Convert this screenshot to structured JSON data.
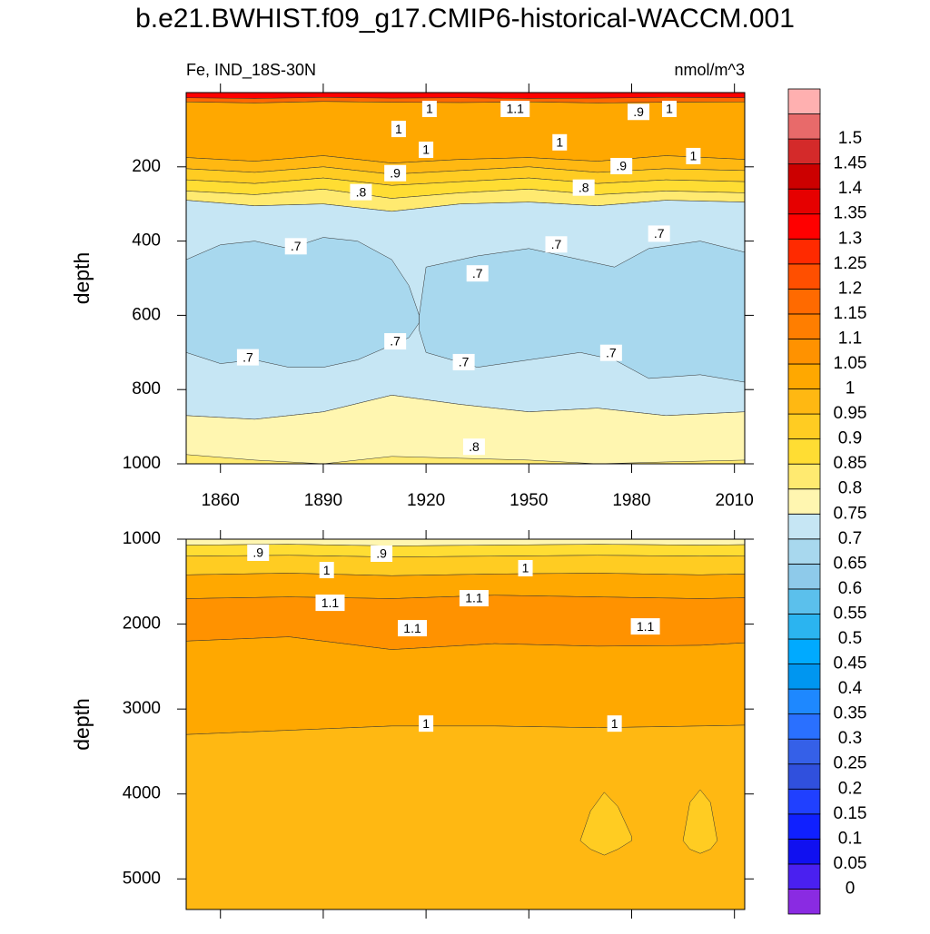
{
  "chart_data": [
    {
      "type": "contour",
      "title": "b.e21.BWHIST.f09_g17.CMIP6-historical-WACCM.001",
      "left_title": "Fe, IND_18S-30N",
      "right_title": "nmol/m^3",
      "ylabel": "depth",
      "xlim": [
        1850,
        2013
      ],
      "ylim": [
        0,
        1000
      ],
      "y_reversed": true,
      "xticks": [
        1860,
        1890,
        1920,
        1950,
        1980,
        2010
      ],
      "yticks": [
        200,
        400,
        600,
        800,
        1000
      ],
      "bands": [
        {
          "level": 1.3,
          "x": [
            1850,
            1870,
            1890,
            1910,
            1930,
            1950,
            1970,
            1990,
            2013
          ],
          "top": [
            0,
            0,
            0,
            0,
            0,
            0,
            0,
            0,
            0
          ],
          "bottom": [
            14,
            16,
            13,
            15,
            14,
            16,
            15,
            13,
            14
          ]
        },
        {
          "level": 1.15,
          "x": [
            1850,
            1870,
            1890,
            1910,
            1930,
            1950,
            1970,
            1990,
            2013
          ],
          "top": [
            14,
            16,
            13,
            15,
            14,
            16,
            15,
            13,
            14
          ],
          "bottom": [
            25,
            28,
            24,
            26,
            27,
            25,
            28,
            26,
            25
          ]
        },
        {
          "level": 1,
          "x": [
            1850,
            1870,
            1890,
            1910,
            1930,
            1950,
            1970,
            1990,
            2013
          ],
          "top": [
            25,
            28,
            24,
            26,
            27,
            25,
            28,
            26,
            25
          ],
          "bottom": [
            175,
            185,
            170,
            190,
            180,
            175,
            185,
            170,
            180
          ]
        },
        {
          "level": 0.95,
          "x": [
            1850,
            1870,
            1890,
            1910,
            1930,
            1950,
            1970,
            1990,
            2013
          ],
          "top": [
            175,
            185,
            170,
            190,
            180,
            175,
            185,
            170,
            180
          ],
          "bottom": [
            205,
            215,
            200,
            220,
            210,
            200,
            215,
            205,
            210
          ]
        },
        {
          "level": 0.9,
          "x": [
            1850,
            1870,
            1890,
            1910,
            1930,
            1950,
            1970,
            1990,
            2013
          ],
          "top": [
            205,
            215,
            200,
            220,
            210,
            200,
            215,
            205,
            210
          ],
          "bottom": [
            235,
            245,
            230,
            250,
            240,
            230,
            245,
            235,
            240
          ]
        },
        {
          "level": 0.85,
          "x": [
            1850,
            1870,
            1890,
            1910,
            1930,
            1950,
            1970,
            1990,
            2013
          ],
          "top": [
            235,
            245,
            230,
            250,
            240,
            230,
            245,
            235,
            240
          ],
          "bottom": [
            265,
            275,
            260,
            285,
            270,
            260,
            275,
            265,
            270
          ]
        },
        {
          "level": 0.8,
          "x": [
            1850,
            1870,
            1890,
            1910,
            1930,
            1950,
            1970,
            1990,
            2013
          ],
          "top": [
            265,
            275,
            260,
            285,
            270,
            260,
            275,
            265,
            270
          ],
          "bottom": [
            290,
            305,
            300,
            320,
            300,
            295,
            305,
            290,
            295
          ]
        },
        {
          "level": 0.7,
          "x": [
            1850,
            1870,
            1890,
            1910,
            1930,
            1950,
            1970,
            1990,
            2013
          ],
          "top": [
            290,
            305,
            300,
            320,
            300,
            295,
            305,
            290,
            295
          ],
          "bottom": [
            870,
            880,
            860,
            815,
            840,
            860,
            850,
            870,
            860
          ]
        },
        {
          "level": 0.75,
          "x": [
            1850,
            1870,
            1890,
            1910,
            1930,
            1950,
            1970,
            1990,
            2013
          ],
          "top": [
            870,
            880,
            860,
            815,
            840,
            860,
            850,
            870,
            860
          ],
          "bottom": [
            1000,
            1000,
            1000,
            1000,
            1000,
            1000,
            1000,
            1000,
            1000
          ]
        },
        {
          "level": 0.8,
          "x": [
            1850,
            1870,
            1890,
            1910,
            1930,
            1950,
            1970,
            1990,
            2013
          ],
          "top": [
            975,
            990,
            1000,
            980,
            985,
            990,
            1000,
            995,
            990
          ],
          "bottom": [
            1000,
            1000,
            1000,
            1000,
            1000,
            1000,
            1000,
            1000,
            1000
          ]
        },
        {
          "level": 0.65,
          "x": [
            1850,
            1860,
            1870,
            1880,
            1890,
            1900,
            1910,
            1915,
            1918
          ],
          "top": [
            450,
            410,
            400,
            420,
            390,
            400,
            450,
            520,
            600
          ],
          "bottom": [
            700,
            730,
            720,
            740,
            740,
            720,
            680,
            660,
            620
          ]
        },
        {
          "level": 0.65,
          "x": [
            1918,
            1920,
            1935,
            1950,
            1965,
            1975,
            1985,
            2000,
            2013
          ],
          "top": [
            600,
            470,
            440,
            420,
            450,
            470,
            420,
            400,
            430
          ],
          "bottom": [
            640,
            700,
            740,
            720,
            700,
            720,
            770,
            760,
            780
          ]
        }
      ],
      "contour_labels": [
        {
          "x": 1868,
          "y": 713,
          "value": 0.7,
          "label": ".7"
        },
        {
          "x": 1882,
          "y": 414,
          "value": 0.7,
          "label": ".7"
        },
        {
          "x": 1911,
          "y": 670,
          "value": 0.7,
          "label": ".7"
        },
        {
          "x": 1935,
          "y": 487,
          "value": 0.7,
          "label": ".7"
        },
        {
          "x": 1931,
          "y": 726,
          "value": 0.7,
          "label": ".7"
        },
        {
          "x": 1958,
          "y": 409,
          "value": 0.7,
          "label": ".7"
        },
        {
          "x": 1974,
          "y": 701,
          "value": 0.7,
          "label": ".7"
        },
        {
          "x": 1988,
          "y": 380,
          "value": 0.7,
          "label": ".7"
        },
        {
          "x": 1901,
          "y": 268,
          "value": 0.8,
          "label": ".8"
        },
        {
          "x": 1966,
          "y": 256,
          "value": 0.8,
          "label": ".8"
        },
        {
          "x": 1934,
          "y": 954,
          "value": 0.8,
          "label": ".8"
        },
        {
          "x": 1911,
          "y": 217,
          "value": 0.9,
          "label": ".9"
        },
        {
          "x": 1977,
          "y": 198,
          "value": 0.9,
          "label": ".9"
        },
        {
          "x": 1982,
          "y": 52,
          "value": 0.9,
          "label": ".9"
        },
        {
          "x": 1921,
          "y": 44,
          "value": 1,
          "label": "1"
        },
        {
          "x": 1912,
          "y": 98,
          "value": 1,
          "label": "1"
        },
        {
          "x": 1920,
          "y": 154,
          "value": 1,
          "label": "1"
        },
        {
          "x": 1959,
          "y": 134,
          "value": 1,
          "label": "1"
        },
        {
          "x": 1991,
          "y": 44,
          "value": 1,
          "label": "1"
        },
        {
          "x": 1998,
          "y": 171,
          "value": 1,
          "label": "1"
        },
        {
          "x": 1946,
          "y": 44,
          "value": 1.1,
          "label": "1.1"
        }
      ]
    },
    {
      "type": "contour",
      "ylabel": "depth",
      "xlim": [
        1850,
        2013
      ],
      "ylim": [
        1000,
        5360
      ],
      "y_reversed": true,
      "xticks": [
        1860,
        1890,
        1920,
        1950,
        1980,
        2010
      ],
      "yticks": [
        1000,
        2000,
        3000,
        4000,
        5000
      ],
      "bands": [
        {
          "level": 0.75,
          "x": [
            1850,
            1880,
            1910,
            1940,
            1970,
            2000,
            2013
          ],
          "top": [
            1000,
            1000,
            1000,
            1000,
            1000,
            1000,
            1000
          ],
          "bottom": [
            1070,
            1060,
            1080,
            1070,
            1060,
            1070,
            1065
          ]
        },
        {
          "level": 0.85,
          "x": [
            1850,
            1880,
            1910,
            1940,
            1970,
            2000,
            2013
          ],
          "top": [
            1070,
            1060,
            1080,
            1070,
            1060,
            1070,
            1065
          ],
          "bottom": [
            1200,
            1190,
            1210,
            1200,
            1190,
            1200,
            1195
          ]
        },
        {
          "level": 0.9,
          "x": [
            1850,
            1880,
            1910,
            1940,
            1970,
            2000,
            2013
          ],
          "top": [
            1200,
            1190,
            1210,
            1200,
            1190,
            1200,
            1195
          ],
          "bottom": [
            1420,
            1400,
            1430,
            1410,
            1400,
            1420,
            1410
          ]
        },
        {
          "level": 1,
          "x": [
            1850,
            1880,
            1910,
            1940,
            1970,
            2000,
            2013
          ],
          "top": [
            1420,
            1400,
            1430,
            1410,
            1400,
            1420,
            1410
          ],
          "bottom": [
            1700,
            1680,
            1700,
            1660,
            1680,
            1700,
            1690
          ]
        },
        {
          "level": 1.05,
          "x": [
            1850,
            1880,
            1910,
            1940,
            1970,
            2000,
            2013
          ],
          "top": [
            1700,
            1680,
            1700,
            1660,
            1680,
            1700,
            1690
          ],
          "bottom": [
            2200,
            2150,
            2300,
            2230,
            2260,
            2250,
            2220
          ]
        },
        {
          "level": 1,
          "x": [
            1850,
            1880,
            1910,
            1940,
            1970,
            2000,
            2013
          ],
          "top": [
            2200,
            2150,
            2300,
            2230,
            2260,
            2250,
            2220
          ],
          "bottom": [
            3300,
            3250,
            3200,
            3200,
            3220,
            3200,
            3190
          ]
        },
        {
          "level": 0.95,
          "x": [
            1850,
            1880,
            1910,
            1940,
            1970,
            2000,
            2013
          ],
          "top": [
            3300,
            3250,
            3200,
            3200,
            3220,
            3200,
            3190
          ],
          "bottom": [
            5360,
            5360,
            5360,
            5360,
            5360,
            5360,
            5360
          ]
        },
        {
          "level": 0.9,
          "x": [
            1965,
            1968,
            1972,
            1976,
            1980
          ],
          "top": [
            4550,
            4200,
            3980,
            4150,
            4500
          ],
          "bottom": [
            4550,
            4650,
            4720,
            4650,
            4550
          ]
        },
        {
          "level": 0.9,
          "x": [
            1995,
            1997,
            2000,
            2003,
            2005
          ],
          "top": [
            4550,
            4100,
            3950,
            4100,
            4550
          ],
          "bottom": [
            4550,
            4650,
            4700,
            4650,
            4550
          ]
        }
      ],
      "contour_labels": [
        {
          "x": 1871,
          "y": 1160,
          "value": 0.9,
          "label": ".9"
        },
        {
          "x": 1907,
          "y": 1171,
          "value": 0.9,
          "label": ".9"
        },
        {
          "x": 1891,
          "y": 1364,
          "value": 1,
          "label": "1"
        },
        {
          "x": 1949,
          "y": 1342,
          "value": 1,
          "label": "1"
        },
        {
          "x": 1892,
          "y": 1749,
          "value": 1.1,
          "label": "1.1"
        },
        {
          "x": 1934,
          "y": 1695,
          "value": 1.1,
          "label": "1.1"
        },
        {
          "x": 1916,
          "y": 2048,
          "value": 1.1,
          "label": "1.1"
        },
        {
          "x": 1984,
          "y": 2027,
          "value": 1.1,
          "label": "1.1"
        },
        {
          "x": 1920,
          "y": 3171,
          "value": 1,
          "label": "1"
        },
        {
          "x": 1975,
          "y": 3171,
          "value": 1,
          "label": "1"
        }
      ]
    },
    {
      "type": "colorbar",
      "levels": [
        0,
        0.05,
        0.1,
        0.15,
        0.2,
        0.25,
        0.3,
        0.35,
        0.4,
        0.45,
        0.5,
        0.55,
        0.6,
        0.65,
        0.7,
        0.75,
        0.8,
        0.85,
        0.9,
        0.95,
        1,
        1.05,
        1.1,
        1.15,
        1.2,
        1.25,
        1.3,
        1.35,
        1.4,
        1.45,
        1.5
      ],
      "colors": [
        "#8a2be2",
        "#4a20f0",
        "#1010f0",
        "#1020ff",
        "#2040ff",
        "#3050dd",
        "#3560e8",
        "#2a70ff",
        "#1e88ff",
        "#0096f0",
        "#00aaff",
        "#2bb4f0",
        "#5bc0ec",
        "#8ecaea",
        "#a8d8ee",
        "#c6e6f4",
        "#fff6b0",
        "#ffea70",
        "#ffdd33",
        "#ffcc22",
        "#ffb812",
        "#ffa800",
        "#ff9200",
        "#ff7e00",
        "#ff6a00",
        "#ff4f00",
        "#ff2a00",
        "#ff0000",
        "#e60000",
        "#cc0000",
        "#d42a2a",
        "#e86a6a",
        "#ffb0b0"
      ]
    }
  ]
}
